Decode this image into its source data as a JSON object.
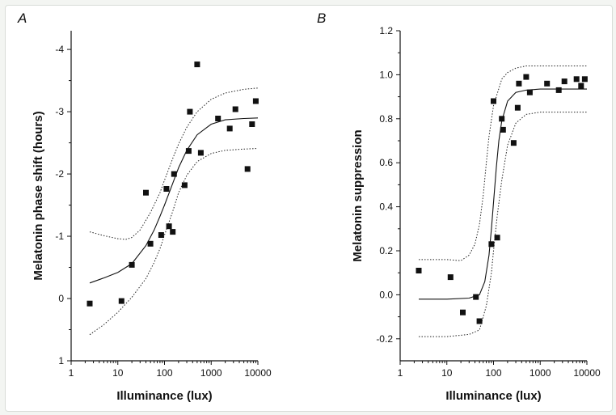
{
  "chart_data": [
    {
      "panel": "A",
      "type": "scatter",
      "title": "",
      "xlabel": "Illuminance (lux)",
      "ylabel": "Melatonin phase shift (hours)",
      "x_scale": "log",
      "xlim": [
        1,
        10000
      ],
      "ylim": [
        1,
        -4.3
      ],
      "y_inverted": true,
      "x_ticks": [
        1,
        10,
        100,
        1000,
        10000
      ],
      "x_tick_labels": [
        "1",
        "10",
        "100",
        "1000",
        "10000"
      ],
      "y_ticks": [
        1,
        0,
        -1,
        -2,
        -3,
        -4
      ],
      "y_tick_labels": [
        "1",
        "0",
        "-1",
        "-2",
        "-3",
        "-4"
      ],
      "grid": false,
      "legend": "none",
      "points": [
        {
          "x": 2.5,
          "y": 0.08
        },
        {
          "x": 12,
          "y": 0.04
        },
        {
          "x": 20,
          "y": -0.54
        },
        {
          "x": 40,
          "y": -1.7
        },
        {
          "x": 50,
          "y": -0.88
        },
        {
          "x": 85,
          "y": -1.02
        },
        {
          "x": 110,
          "y": -1.76
        },
        {
          "x": 125,
          "y": -1.16
        },
        {
          "x": 150,
          "y": -1.07
        },
        {
          "x": 160,
          "y": -2.0
        },
        {
          "x": 270,
          "y": -1.82
        },
        {
          "x": 330,
          "y": -2.37
        },
        {
          "x": 350,
          "y": -3.0
        },
        {
          "x": 500,
          "y": -3.76
        },
        {
          "x": 600,
          "y": -2.34
        },
        {
          "x": 1400,
          "y": -2.89
        },
        {
          "x": 2500,
          "y": -2.73
        },
        {
          "x": 3300,
          "y": -3.04
        },
        {
          "x": 6000,
          "y": -2.08
        },
        {
          "x": 7500,
          "y": -2.8
        },
        {
          "x": 9000,
          "y": -3.17
        }
      ],
      "fit": {
        "x": [
          2.5,
          5,
          10,
          20,
          40,
          60,
          80,
          100,
          150,
          200,
          300,
          500,
          1000,
          2000,
          5000,
          10000
        ],
        "y": [
          -0.25,
          -0.33,
          -0.42,
          -0.56,
          -0.85,
          -1.1,
          -1.32,
          -1.5,
          -1.85,
          -2.1,
          -2.38,
          -2.63,
          -2.8,
          -2.87,
          -2.89,
          -2.9
        ]
      },
      "ci_upper": {
        "x": [
          2.5,
          5,
          10,
          15,
          20,
          30,
          50,
          80,
          100,
          150,
          200,
          300,
          500,
          1000,
          2000,
          5000,
          10000
        ],
        "y": [
          -1.07,
          -1.01,
          -0.96,
          -0.95,
          -0.98,
          -1.1,
          -1.38,
          -1.7,
          -1.9,
          -2.25,
          -2.48,
          -2.75,
          -3.0,
          -3.2,
          -3.3,
          -3.36,
          -3.38
        ]
      },
      "ci_lower": {
        "x": [
          2.5,
          5,
          10,
          20,
          40,
          60,
          80,
          100,
          150,
          200,
          300,
          500,
          1000,
          2000,
          5000,
          10000
        ],
        "y": [
          0.58,
          0.42,
          0.22,
          -0.02,
          -0.32,
          -0.58,
          -0.8,
          -1.02,
          -1.4,
          -1.7,
          -1.98,
          -2.2,
          -2.33,
          -2.38,
          -2.4,
          -2.41
        ]
      }
    },
    {
      "panel": "B",
      "type": "scatter",
      "title": "",
      "xlabel": "Illuminance (lux)",
      "ylabel": "Melatonin suppression",
      "x_scale": "log",
      "xlim": [
        1,
        10000
      ],
      "ylim": [
        -0.3,
        1.2
      ],
      "x_ticks": [
        1,
        10,
        100,
        1000,
        10000
      ],
      "x_tick_labels": [
        "1",
        "10",
        "100",
        "1000",
        "10000"
      ],
      "y_ticks": [
        -0.2,
        0.0,
        0.2,
        0.4,
        0.6,
        0.8,
        1.0,
        1.2
      ],
      "y_tick_labels": [
        "-0.2",
        "0.0",
        "0.2",
        "0.4",
        "0.6",
        "0.8",
        "1.0",
        "1.2"
      ],
      "grid": false,
      "legend": "none",
      "points": [
        {
          "x": 2.5,
          "y": 0.11
        },
        {
          "x": 12,
          "y": 0.08
        },
        {
          "x": 22,
          "y": -0.08
        },
        {
          "x": 42,
          "y": -0.01
        },
        {
          "x": 50,
          "y": -0.12
        },
        {
          "x": 90,
          "y": 0.23
        },
        {
          "x": 100,
          "y": 0.88
        },
        {
          "x": 120,
          "y": 0.26
        },
        {
          "x": 150,
          "y": 0.8
        },
        {
          "x": 160,
          "y": 0.75
        },
        {
          "x": 270,
          "y": 0.69
        },
        {
          "x": 330,
          "y": 0.85
        },
        {
          "x": 350,
          "y": 0.96
        },
        {
          "x": 500,
          "y": 0.99
        },
        {
          "x": 600,
          "y": 0.92
        },
        {
          "x": 1400,
          "y": 0.96
        },
        {
          "x": 2500,
          "y": 0.93
        },
        {
          "x": 3300,
          "y": 0.97
        },
        {
          "x": 6000,
          "y": 0.98
        },
        {
          "x": 7500,
          "y": 0.95
        },
        {
          "x": 9000,
          "y": 0.98
        }
      ],
      "fit": {
        "x": [
          2.5,
          10,
          30,
          50,
          65,
          80,
          90,
          100,
          115,
          130,
          150,
          200,
          300,
          500,
          1000,
          10000
        ],
        "y": [
          -0.02,
          -0.02,
          -0.015,
          0.0,
          0.06,
          0.18,
          0.3,
          0.42,
          0.58,
          0.7,
          0.79,
          0.88,
          0.92,
          0.93,
          0.935,
          0.935
        ]
      },
      "ci_upper": {
        "x": [
          2.5,
          10,
          20,
          30,
          40,
          50,
          60,
          70,
          80,
          100,
          150,
          200,
          300,
          500,
          1000,
          10000
        ],
        "y": [
          0.16,
          0.16,
          0.155,
          0.18,
          0.23,
          0.32,
          0.45,
          0.6,
          0.72,
          0.86,
          0.98,
          1.01,
          1.03,
          1.04,
          1.04,
          1.04
        ]
      },
      "ci_lower": {
        "x": [
          2.5,
          10,
          30,
          50,
          70,
          90,
          100,
          120,
          150,
          200,
          300,
          500,
          1000,
          10000
        ],
        "y": [
          -0.19,
          -0.19,
          -0.18,
          -0.16,
          -0.05,
          0.1,
          0.2,
          0.36,
          0.52,
          0.68,
          0.78,
          0.82,
          0.83,
          0.83
        ]
      }
    }
  ]
}
